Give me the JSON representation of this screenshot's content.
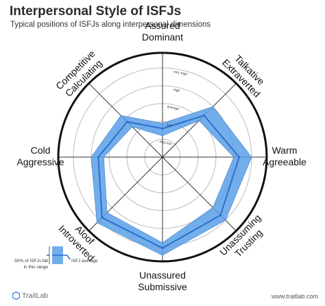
{
  "header": {
    "title": "Interpersonal Style of ISFJs",
    "subtitle": "Typical positions of ISFJs along interpersonal dimensions"
  },
  "colors": {
    "band_fill": "#5aa0e8",
    "band_stroke": "#4a8fd8",
    "avg_line": "#2b6fcf",
    "grid": "#bbbbbb",
    "axis": "#333333",
    "outer_ring": "#111111"
  },
  "chart_data": {
    "type": "radar",
    "axes": [
      {
        "label_lines": [
          "Assured",
          "Dominant"
        ]
      },
      {
        "label_lines": [
          "Talkative",
          "Extraverted"
        ]
      },
      {
        "label_lines": [
          "Warm",
          "Agreeable"
        ]
      },
      {
        "label_lines": [
          "Unassuming",
          "Trusting"
        ]
      },
      {
        "label_lines": [
          "Unassured",
          "Submissive"
        ]
      },
      {
        "label_lines": [
          "Aloof",
          "Introverted"
        ]
      },
      {
        "label_lines": [
          "Cold",
          "Aggressive"
        ]
      },
      {
        "label_lines": [
          "Competitive",
          "Calculating"
        ]
      }
    ],
    "ring_labels": [
      "very low",
      "low",
      "average",
      "high",
      "very high"
    ],
    "rmax": 5,
    "series": [
      {
        "role": "range_low",
        "values": [
          1.2,
          2.9,
          4.0,
          4.0,
          4.8,
          4.4,
          3.3,
          2.4
        ]
      },
      {
        "role": "range_high",
        "values": [
          1.9,
          4.0,
          5.0,
          5.0,
          5.5,
          5.2,
          4.0,
          3.3
        ]
      },
      {
        "role": "average",
        "values": [
          1.6,
          3.3,
          4.3,
          4.6,
          5.1,
          4.8,
          3.6,
          2.8
        ]
      }
    ]
  },
  "legend": {
    "range_text": "50% of ISFJs fall in this range",
    "avg_text": "ISFJ average"
  },
  "footer": {
    "logo_text": "TraitLab",
    "url": "www.traitlab.com"
  }
}
